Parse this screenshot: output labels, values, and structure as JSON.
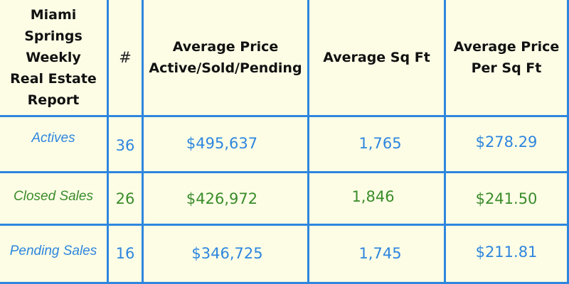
{
  "colors": {
    "background": "#fdfde6",
    "grid": "#2e86de",
    "blue_text": "#2e86de",
    "green_text": "#3a8c2a"
  },
  "header": {
    "title_lines": [
      "Miami",
      "Springs",
      "Weekly",
      "Real Estate",
      "Report"
    ],
    "count": "#",
    "avg_price_lines": [
      "Average Price",
      "Active/Sold/Pending"
    ],
    "avg_sqft": "Average Sq Ft",
    "avg_price_sqft_lines": [
      "Average Price",
      "Per Sq Ft"
    ]
  },
  "rows": [
    {
      "label": "Actives",
      "count": "36",
      "avg_price": "$495,637",
      "avg_sqft": "1,765",
      "price_per_sqft": "$278.29"
    },
    {
      "label": "Closed Sales",
      "count": "26",
      "avg_price": "$426,972",
      "avg_sqft": "1,846",
      "price_per_sqft": "$241.50"
    },
    {
      "label": "Pending Sales",
      "count": "16",
      "avg_price": "$346,725",
      "avg_sqft": "1,745",
      "price_per_sqft": "$211.81"
    }
  ]
}
